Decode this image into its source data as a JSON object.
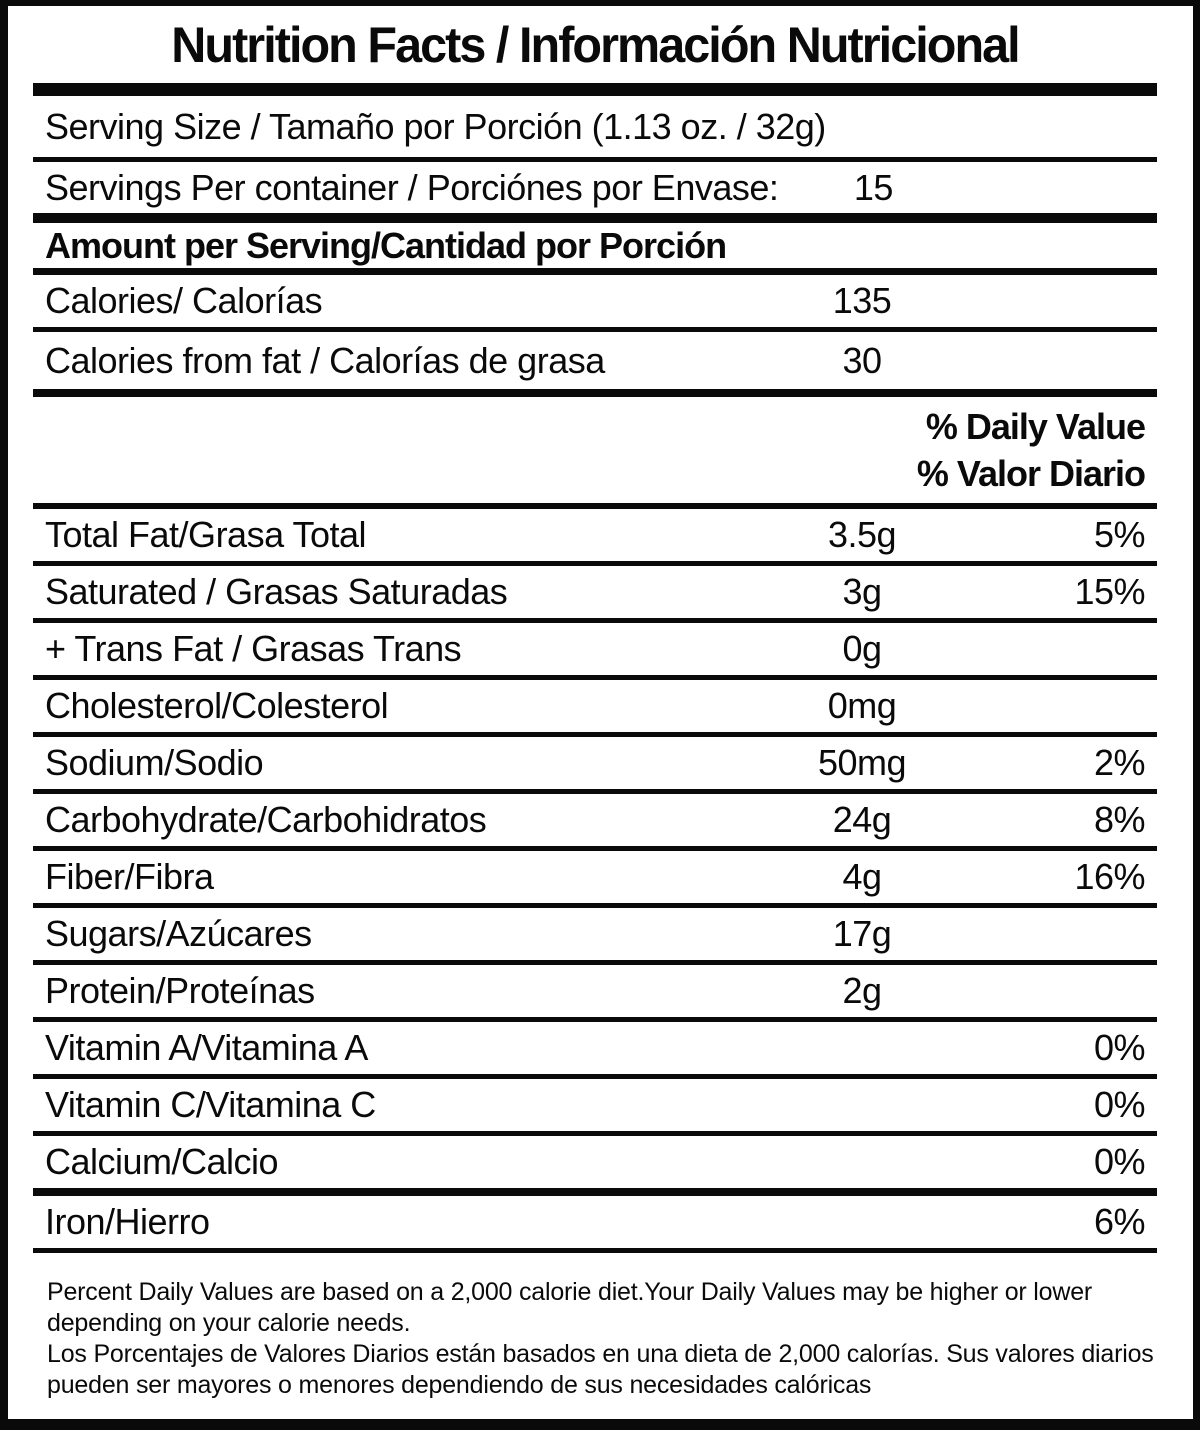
{
  "colors": {
    "ink": "#0a0a0a",
    "background": "#ffffff"
  },
  "title": "Nutrition Facts / Información Nutricional",
  "serving": {
    "size_label": "Serving Size / Tamaño por Porción (1.13 oz. / 32g)",
    "per_container_label": "Servings Per container / Porciónes por Envase:",
    "per_container_value": "15"
  },
  "amount_header": "Amount per Serving/Cantidad por Porción",
  "calories": {
    "label": "Calories/ Calorías",
    "value": "135"
  },
  "calories_from_fat": {
    "label": "Calories from fat / Calorías de grasa",
    "value": "30"
  },
  "daily_value_header": {
    "en": "% Daily Value",
    "es": "% Valor Diario"
  },
  "nutrients": [
    {
      "label": "Total Fat/Grasa Total",
      "amount": "3.5g",
      "dv": "5%"
    },
    {
      "label": "Saturated / Grasas Saturadas",
      "amount": "3g",
      "dv": "15%"
    },
    {
      "label": "+ Trans Fat / Grasas Trans",
      "amount": "0g",
      "dv": ""
    },
    {
      "label": "Cholesterol/Colesterol",
      "amount": "0mg",
      "dv": ""
    },
    {
      "label": "Sodium/Sodio",
      "amount": "50mg",
      "dv": "2%"
    },
    {
      "label": "Carbohydrate/Carbohidratos",
      "amount": "24g",
      "dv": "8%"
    },
    {
      "label": "Fiber/Fibra",
      "amount": "4g",
      "dv": "16%"
    },
    {
      "label": "Sugars/Azúcares",
      "amount": "17g",
      "dv": ""
    },
    {
      "label": "Protein/Proteínas",
      "amount": "2g",
      "dv": ""
    },
    {
      "label": "Vitamin A/Vitamina A",
      "amount": "",
      "dv": "0%"
    },
    {
      "label": "Vitamin C/Vitamina C",
      "amount": "",
      "dv": "0%"
    },
    {
      "label": "Calcium/Calcio",
      "amount": "",
      "dv": "0%"
    },
    {
      "label": "Iron/Hierro",
      "amount": "",
      "dv": "6%"
    }
  ],
  "footnotes": {
    "en": "Percent Daily Values are based on a 2,000 calorie diet.Your Daily Values may be higher or lower depending on your calorie needs.",
    "es": "Los Porcentajes de Valores Diarios están basados en una dieta de 2,000 calorías. Sus valores diarios pueden ser mayores o menores dependiendo de sus necesidades calóricas"
  }
}
